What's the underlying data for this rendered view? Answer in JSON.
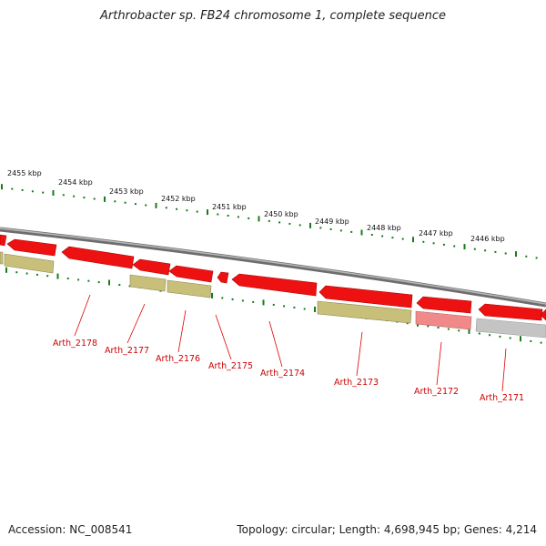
{
  "title": "Arthrobacter sp. FB24 chromosome 1, complete sequence",
  "footer": {
    "accession": "Accession: NC_008541",
    "summary": "Topology: circular; Length: 4,698,945 bp; Genes: 4,214"
  },
  "colors": {
    "tick": "#1a7a1a",
    "backbone": "#8a8a8a",
    "cds": "#ee1111",
    "cds_dark": "#b00000",
    "olive": "#c8c07a",
    "olive_dark": "#8c8650",
    "pink": "#f08a8a",
    "gray": "#c4c4c4",
    "label": "#cc0000"
  },
  "kbp_labels": [
    "2455 kbp",
    "2454 kbp",
    "2453 kbp",
    "2452 kbp",
    "2451 kbp",
    "2450 kbp",
    "2449 kbp",
    "2448 kbp",
    "2447 kbp",
    "2446 kbp"
  ],
  "gene_labels": [
    "Arth_2178",
    "Arth_2177",
    "Arth_2176",
    "Arth_2175",
    "Arth_2174",
    "Arth_2173",
    "Arth_2172",
    "Arth_2171"
  ]
}
